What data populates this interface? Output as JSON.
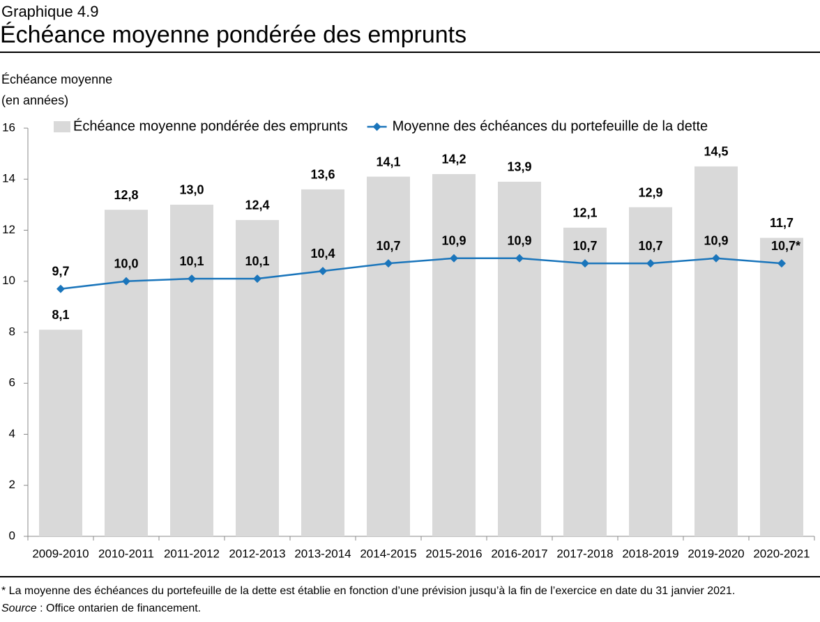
{
  "chart_data": {
    "type": "bar",
    "kicker": "Graphique 4.9",
    "title": "Échéance moyenne pondérée des emprunts",
    "ylabel": [
      "Échéance moyenne",
      "(en années)"
    ],
    "categories": [
      "2009-2010",
      "2010-2011",
      "2011-2012",
      "2012-2013",
      "2013-2014",
      "2014-2015",
      "2015-2016",
      "2016-2017",
      "2017-2018",
      "2018-2019",
      "2019-2020",
      "2020-2021"
    ],
    "series": [
      {
        "name": "Échéance moyenne pondérée des emprunts",
        "type": "bar",
        "color": "#d9d9d9",
        "values": [
          8.1,
          12.8,
          13.0,
          12.4,
          13.6,
          14.1,
          14.2,
          13.9,
          12.1,
          12.9,
          14.5,
          11.7
        ],
        "value_labels": [
          "8,1",
          "12,8",
          "13,0",
          "12,4",
          "13,6",
          "14,1",
          "14,2",
          "13,9",
          "12,1",
          "12,9",
          "14,5",
          "11,7"
        ]
      },
      {
        "name": "Moyenne des échéances du portefeuille de la dette",
        "type": "line",
        "color": "#1a75bb",
        "values": [
          9.7,
          10.0,
          10.1,
          10.1,
          10.4,
          10.7,
          10.9,
          10.9,
          10.7,
          10.7,
          10.9,
          10.7
        ],
        "value_labels": [
          "9,7",
          "10,0",
          "10,1",
          "10,1",
          "10,4",
          "10,7",
          "10,9",
          "10,9",
          "10,7",
          "10,7",
          "10,9",
          "10,7*"
        ]
      }
    ],
    "ylim": [
      0,
      16
    ],
    "yticks": [
      0,
      2,
      4,
      6,
      8,
      10,
      12,
      14,
      16
    ],
    "grid": false,
    "legend": "top",
    "note": "* La moyenne des échéances du portefeuille de la dette est établie en fonction d’une prévision jusqu’à la fin de l’exercice en date du 31 janvier 2021.",
    "source_label": "Source",
    "source_text": " : Office ontarien de financement."
  }
}
